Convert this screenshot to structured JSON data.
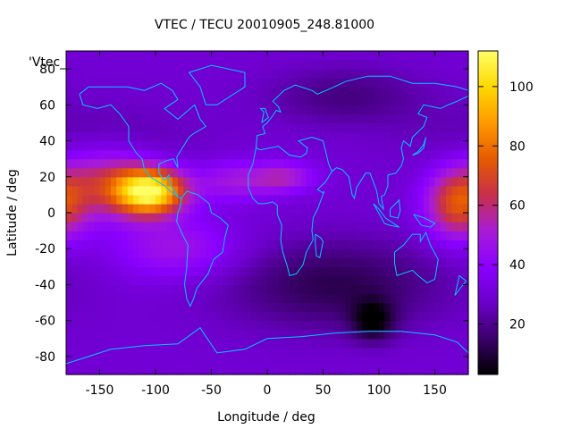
{
  "chart_data": {
    "type": "heatmap",
    "title": "VTEC / TECU 20010905_248.81000",
    "xlabel": "Longitude / deg",
    "ylabel": "Latitude / deg",
    "key_label": "'Vtec_",
    "xlim": [
      -180,
      180
    ],
    "ylim": [
      -90,
      90
    ],
    "x_ticks": [
      -150,
      -100,
      -50,
      0,
      50,
      100,
      150
    ],
    "y_ticks": [
      -80,
      -60,
      -40,
      -20,
      0,
      20,
      40,
      60,
      80
    ],
    "colorbar": {
      "range": [
        3,
        112
      ],
      "ticks": [
        20,
        40,
        60,
        80,
        100
      ],
      "colormap": [
        "#000000",
        "#3a006a",
        "#6b00c8",
        "#8a00ff",
        "#a81cd6",
        "#c8304a",
        "#e65a00",
        "#ff9a00",
        "#ffd800",
        "#ffff66"
      ]
    },
    "grid": false,
    "features": {
      "background_level": 30,
      "pacific_peak": {
        "lon": -105,
        "lat": 5,
        "value": 110
      },
      "indian_ocean_band": {
        "lon": 170,
        "lat": 0,
        "value": 75
      },
      "south_polar_low": {
        "lon": 95,
        "lat": -60,
        "value": 4
      }
    },
    "overlay": "coastlines",
    "overlay_color": "#00c8ff"
  }
}
